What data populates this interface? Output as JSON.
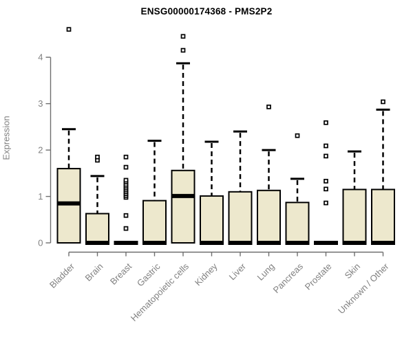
{
  "chart_data": {
    "type": "boxplot",
    "title": "ENSG00000174368 - PMS2P2",
    "ylabel": "Expression",
    "xlabel": "",
    "ylim": [
      0,
      4
    ],
    "yticks": [
      0,
      1,
      2,
      3,
      4
    ],
    "grid": false,
    "legend": "none",
    "categories": [
      "Bladder",
      "Brain",
      "Breast",
      "Gastric",
      "Hematopoietic cells",
      "Kidney",
      "Liver",
      "Lung",
      "Pancreas",
      "Prostate",
      "Skin",
      "Unknown / Other"
    ],
    "boxes": [
      {
        "category": "Bladder",
        "q1": 0,
        "median": 0.85,
        "q3": 1.6,
        "whisker_low": 0,
        "whisker_high": 2.45,
        "outliers": [
          4.6
        ]
      },
      {
        "category": "Brain",
        "q1": 0,
        "median": 0,
        "q3": 0.63,
        "whisker_low": 0,
        "whisker_high": 1.44,
        "outliers": [
          1.78,
          1.85
        ]
      },
      {
        "category": "Breast",
        "q1": 0,
        "median": 0,
        "q3": 0,
        "whisker_low": 0,
        "whisker_high": 0,
        "outliers": [
          0.31,
          0.59,
          0.98,
          1.02,
          1.06,
          1.1,
          1.14,
          1.18,
          1.22,
          1.26,
          1.31,
          1.35,
          1.63,
          1.85
        ]
      },
      {
        "category": "Gastric",
        "q1": 0,
        "median": 0,
        "q3": 0.91,
        "whisker_low": 0,
        "whisker_high": 2.2,
        "outliers": []
      },
      {
        "category": "Hematopoietic cells",
        "q1": 0,
        "median": 1.01,
        "q3": 1.56,
        "whisker_low": 0,
        "whisker_high": 3.87,
        "outliers": [
          4.15,
          4.45
        ]
      },
      {
        "category": "Kidney",
        "q1": 0,
        "median": 0,
        "q3": 1.01,
        "whisker_low": 0,
        "whisker_high": 2.18,
        "outliers": []
      },
      {
        "category": "Liver",
        "q1": 0,
        "median": 0,
        "q3": 1.1,
        "whisker_low": 0,
        "whisker_high": 2.4,
        "outliers": []
      },
      {
        "category": "Lung",
        "q1": 0,
        "median": 0,
        "q3": 1.13,
        "whisker_low": 0,
        "whisker_high": 2.0,
        "outliers": [
          2.93
        ]
      },
      {
        "category": "Pancreas",
        "q1": 0,
        "median": 0,
        "q3": 0.87,
        "whisker_low": 0,
        "whisker_high": 1.38,
        "outliers": [
          2.31
        ]
      },
      {
        "category": "Prostate",
        "q1": 0,
        "median": 0,
        "q3": 0,
        "whisker_low": 0,
        "whisker_high": 0,
        "outliers": [
          0.86,
          1.16,
          1.33,
          1.87,
          2.09,
          2.59
        ]
      },
      {
        "category": "Skin",
        "q1": 0,
        "median": 0,
        "q3": 1.15,
        "whisker_low": 0,
        "whisker_high": 1.97,
        "outliers": []
      },
      {
        "category": "Unknown / Other",
        "q1": 0,
        "median": 0,
        "q3": 1.15,
        "whisker_low": 0,
        "whisker_high": 2.87,
        "outliers": [
          3.04
        ]
      }
    ],
    "colors": {
      "box_fill": "#ede8cd",
      "box_stroke": "#000000",
      "median": "#000000",
      "whisker": "#000000",
      "outlier_fill": "#ffffff",
      "outlier_stroke": "#000000",
      "axis_line": "#6e6e6e",
      "axis_text": "#808080",
      "title_text": "#000000"
    }
  }
}
